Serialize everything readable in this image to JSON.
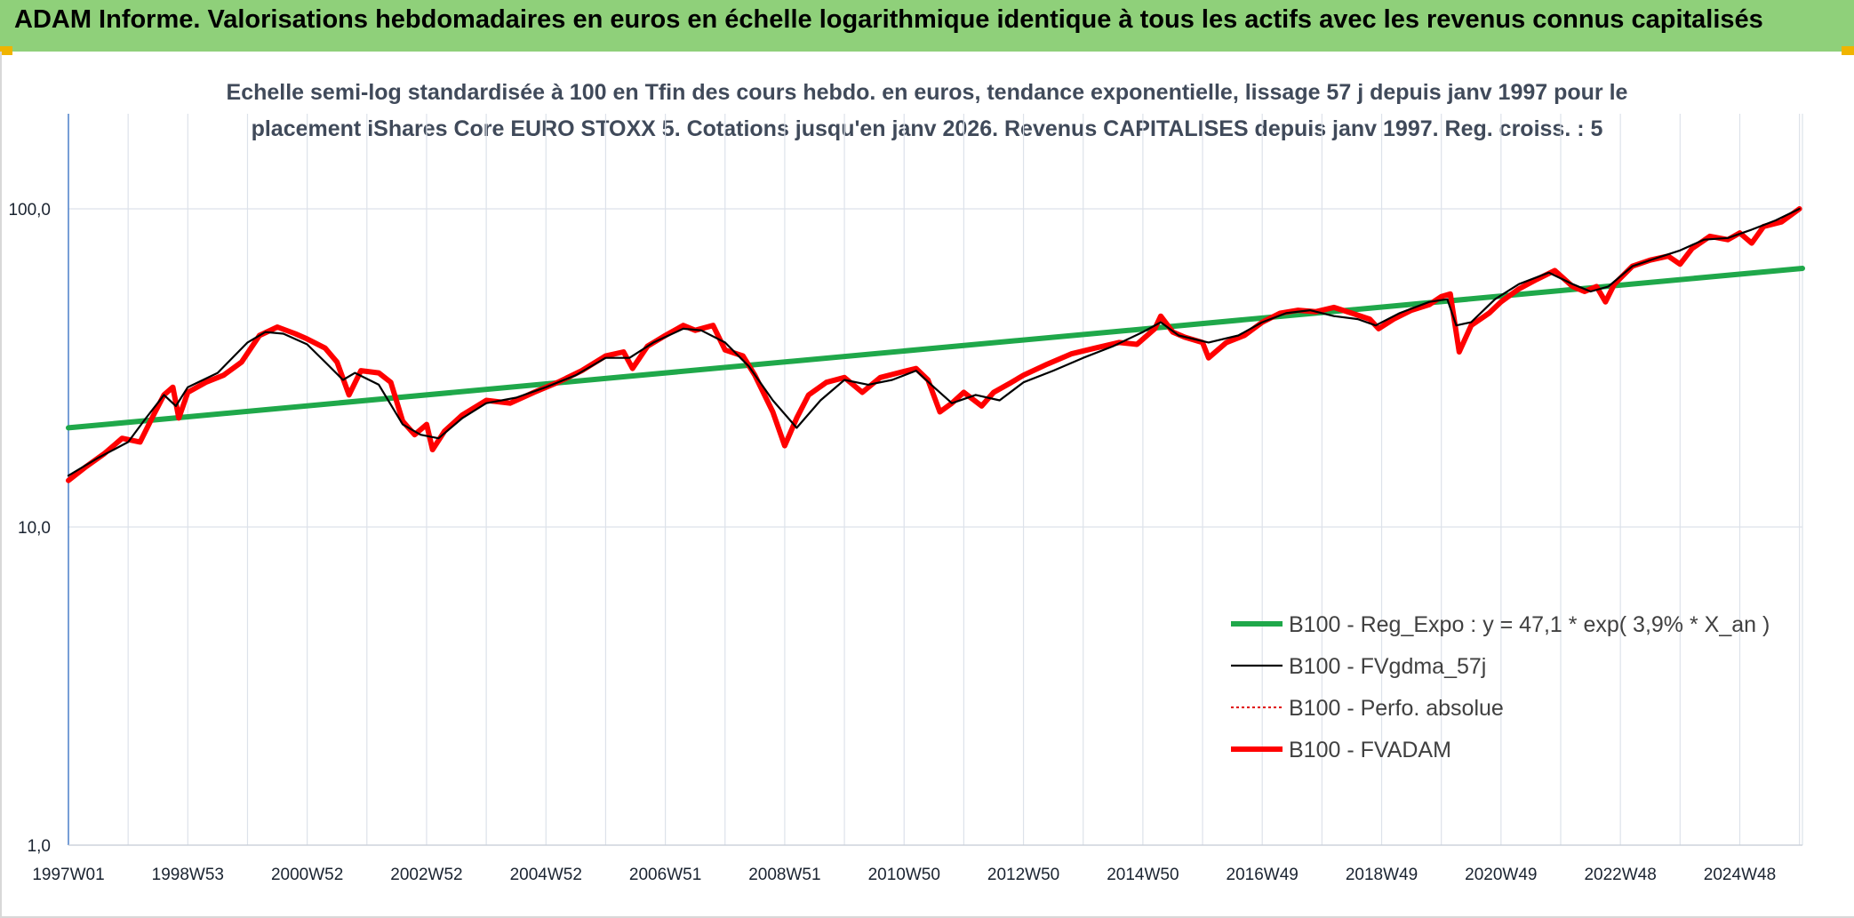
{
  "header": {
    "title": "ADAM Informe. Valorisations hebdomadaires en euros en échelle logarithmique identique à tous les actifs avec les revenus connus capitalisés",
    "accent_color": "#8fd07a",
    "corner_color": "#f0b400"
  },
  "chart_data": {
    "type": "line",
    "title_lines": [
      "Echelle semi-log standardisée à 100 en Tfin des cours hebdo. en euros, tendance exponentielle, lissage 57 j depuis janv 1997 pour le",
      "placement iShares Core EURO STOXX 5. Cotations jusqu'en janv 2026. Revenus CAPITALISES depuis janv 1997. Reg. croiss. : 5"
    ],
    "y_scale": "log",
    "ylim": [
      1,
      100
    ],
    "y_ticks": [
      {
        "value": 100,
        "label": "100,0"
      },
      {
        "value": 10,
        "label": "10,0"
      },
      {
        "value": 1,
        "label": "1,0"
      }
    ],
    "xlim": [
      1997.0,
      2026.05
    ],
    "x_ticks": [
      {
        "x": 1997.0,
        "label": "1997W01"
      },
      {
        "x": 1999.0,
        "label": "1998W53"
      },
      {
        "x": 2001.0,
        "label": "2000W52"
      },
      {
        "x": 2003.0,
        "label": "2002W52"
      },
      {
        "x": 2005.0,
        "label": "2004W52"
      },
      {
        "x": 2007.0,
        "label": "2006W51"
      },
      {
        "x": 2009.0,
        "label": "2008W51"
      },
      {
        "x": 2011.0,
        "label": "2010W50"
      },
      {
        "x": 2013.0,
        "label": "2012W50"
      },
      {
        "x": 2015.0,
        "label": "2014W50"
      },
      {
        "x": 2017.0,
        "label": "2016W49"
      },
      {
        "x": 2019.0,
        "label": "2018W49"
      },
      {
        "x": 2021.0,
        "label": "2020W49"
      },
      {
        "x": 2023.0,
        "label": "2022W48"
      },
      {
        "x": 2025.0,
        "label": "2024W48"
      }
    ],
    "grid": true,
    "legend_position": "lower-right",
    "series": [
      {
        "name": "B100 - Reg_Expo : y = 47,1 * exp( 3,9% *  X_an )",
        "color": "#1fa84a",
        "style": "thick",
        "x": [
          1997.0,
          2026.05
        ],
        "y": [
          20.5,
          65.0
        ]
      },
      {
        "name": "B100 - FVgdma_57j",
        "color": "#000000",
        "style": "solid",
        "x": [
          1997.0,
          1997.5,
          1998.0,
          1998.3,
          1998.6,
          1998.8,
          1999.0,
          1999.5,
          2000.0,
          2000.3,
          2000.6,
          2001.0,
          2001.3,
          2001.6,
          2001.8,
          2002.2,
          2002.6,
          2002.9,
          2003.2,
          2003.6,
          2004.0,
          2004.5,
          2005.0,
          2005.5,
          2006.0,
          2006.4,
          2006.8,
          2007.3,
          2007.6,
          2008.0,
          2008.4,
          2008.8,
          2009.2,
          2009.6,
          2010.0,
          2010.4,
          2010.8,
          2011.2,
          2011.5,
          2011.8,
          2012.2,
          2012.6,
          2013.0,
          2013.5,
          2014.0,
          2014.5,
          2015.0,
          2015.3,
          2015.6,
          2016.1,
          2016.6,
          2017.0,
          2017.4,
          2017.8,
          2018.2,
          2018.6,
          2018.9,
          2019.3,
          2019.8,
          2020.1,
          2020.25,
          2020.5,
          2020.9,
          2021.3,
          2021.8,
          2022.2,
          2022.5,
          2022.8,
          2023.2,
          2023.6,
          2024.0,
          2024.4,
          2024.8,
          2025.2,
          2025.6,
          2026.0
        ],
        "y": [
          14.5,
          16.5,
          18.5,
          22.0,
          26.0,
          24.0,
          27.5,
          30.5,
          38.0,
          41.0,
          40.5,
          37.5,
          33.0,
          29.0,
          30.5,
          28.0,
          21.0,
          19.5,
          19.0,
          22.0,
          24.5,
          25.5,
          27.5,
          30.0,
          34.0,
          34.0,
          38.0,
          42.0,
          41.5,
          38.0,
          32.0,
          25.0,
          20.5,
          25.0,
          29.0,
          28.0,
          29.0,
          31.0,
          27.5,
          24.5,
          26.0,
          25.0,
          28.5,
          31.0,
          34.0,
          37.0,
          41.0,
          44.0,
          40.0,
          38.0,
          40.0,
          44.0,
          47.0,
          48.0,
          46.0,
          45.0,
          43.0,
          47.0,
          51.0,
          52.0,
          43.0,
          44.0,
          52.0,
          58.0,
          63.0,
          58.0,
          55.0,
          57.0,
          66.0,
          70.0,
          74.0,
          80.0,
          81.0,
          86.0,
          92.0,
          100.0
        ]
      },
      {
        "name": "B100 - Perfo. absolue",
        "color": "#e00000",
        "style": "dotted",
        "x": [],
        "y": []
      },
      {
        "name": "B100 - FVADAM",
        "color": "#ff0000",
        "style": "thick",
        "x": [
          1997.0,
          1997.3,
          1997.6,
          1997.9,
          1998.2,
          1998.4,
          1998.6,
          1998.75,
          1998.85,
          1999.0,
          1999.3,
          1999.6,
          1999.9,
          2000.2,
          2000.5,
          2000.8,
          2001.0,
          2001.3,
          2001.5,
          2001.7,
          2001.9,
          2002.2,
          2002.4,
          2002.6,
          2002.8,
          2003.0,
          2003.1,
          2003.3,
          2003.6,
          2004.0,
          2004.4,
          2004.8,
          2005.2,
          2005.6,
          2006.0,
          2006.3,
          2006.45,
          2006.7,
          2007.0,
          2007.3,
          2007.5,
          2007.8,
          2008.0,
          2008.3,
          2008.5,
          2008.8,
          2009.0,
          2009.2,
          2009.4,
          2009.7,
          2010.0,
          2010.3,
          2010.6,
          2010.9,
          2011.2,
          2011.4,
          2011.6,
          2011.8,
          2012.0,
          2012.3,
          2012.5,
          2012.8,
          2013.0,
          2013.4,
          2013.8,
          2014.2,
          2014.6,
          2014.9,
          2015.2,
          2015.3,
          2015.5,
          2015.7,
          2016.0,
          2016.1,
          2016.4,
          2016.7,
          2017.0,
          2017.3,
          2017.6,
          2017.9,
          2018.2,
          2018.5,
          2018.8,
          2018.95,
          2019.2,
          2019.5,
          2019.8,
          2020.0,
          2020.15,
          2020.2,
          2020.3,
          2020.5,
          2020.8,
          2021.0,
          2021.3,
          2021.6,
          2021.9,
          2022.2,
          2022.4,
          2022.6,
          2022.75,
          2022.9,
          2023.2,
          2023.5,
          2023.8,
          2024.0,
          2024.2,
          2024.5,
          2024.8,
          2025.0,
          2025.2,
          2025.4,
          2025.7,
          2026.0
        ],
        "y": [
          14.0,
          15.5,
          17.0,
          19.0,
          18.5,
          22.0,
          26.0,
          27.5,
          22.0,
          26.5,
          28.5,
          30.0,
          33.0,
          40.0,
          42.5,
          40.5,
          39.0,
          36.5,
          33.0,
          26.0,
          31.0,
          30.5,
          28.5,
          21.5,
          19.5,
          21.0,
          17.5,
          20.0,
          22.5,
          25.0,
          24.5,
          26.5,
          28.5,
          31.0,
          34.5,
          35.5,
          31.5,
          37.0,
          40.0,
          43.0,
          41.5,
          43.0,
          36.0,
          34.5,
          30.0,
          23.0,
          18.0,
          22.0,
          26.0,
          28.5,
          29.5,
          26.5,
          29.5,
          30.5,
          31.5,
          29.0,
          23.0,
          24.5,
          26.5,
          24.0,
          26.5,
          28.5,
          30.0,
          32.5,
          35.0,
          36.5,
          38.0,
          37.5,
          42.0,
          46.0,
          41.0,
          39.5,
          38.0,
          34.0,
          38.0,
          40.0,
          44.0,
          47.0,
          48.0,
          47.5,
          49.0,
          47.0,
          45.0,
          42.0,
          45.0,
          48.0,
          50.0,
          53.0,
          54.0,
          47.0,
          35.5,
          43.0,
          47.0,
          51.0,
          56.0,
          60.0,
          64.0,
          57.0,
          55.0,
          57.0,
          51.0,
          58.0,
          66.0,
          69.0,
          71.0,
          67.0,
          75.0,
          82.0,
          80.0,
          84.0,
          78.0,
          88.0,
          91.0,
          100.0
        ]
      }
    ]
  }
}
